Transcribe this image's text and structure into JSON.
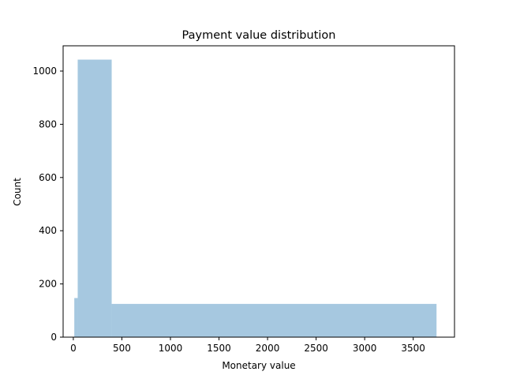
{
  "chart_data": {
    "type": "bar",
    "title": "Payment value distribution",
    "xlabel": "Monetary value",
    "ylabel": "Count",
    "xlim": [
      -105,
      3925
    ],
    "ylim": [
      0,
      1095
    ],
    "xticks": [
      0,
      500,
      1000,
      1500,
      2000,
      2500,
      3000,
      3500
    ],
    "yticks": [
      0,
      200,
      400,
      600,
      800,
      1000
    ],
    "grid": false,
    "bar_color": "#a6c8e0",
    "bins": [
      {
        "x0": 10,
        "x1": 45,
        "count": 147
      },
      {
        "x0": 45,
        "x1": 395,
        "count": 1043
      },
      {
        "x0": 395,
        "x1": 3740,
        "count": 125
      }
    ]
  }
}
